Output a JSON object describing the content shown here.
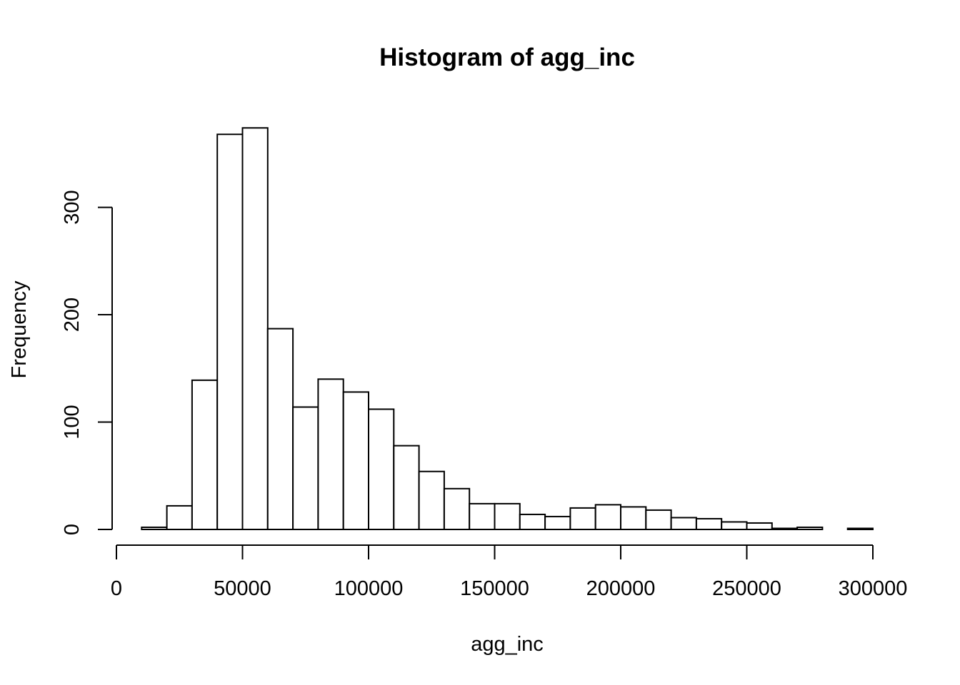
{
  "chart_data": {
    "type": "bar",
    "title": "Histogram of agg_inc",
    "xlabel": "agg_inc",
    "ylabel": "Frequency",
    "x_ticks": [
      0,
      50000,
      100000,
      150000,
      200000,
      250000,
      300000
    ],
    "y_ticks": [
      0,
      100,
      200,
      300
    ],
    "xlim": [
      0,
      300000
    ],
    "ylim": [
      0,
      380
    ],
    "bin_width": 10000,
    "bins": [
      {
        "start": 10000,
        "end": 20000,
        "count": 2
      },
      {
        "start": 20000,
        "end": 30000,
        "count": 22
      },
      {
        "start": 30000,
        "end": 40000,
        "count": 139
      },
      {
        "start": 40000,
        "end": 50000,
        "count": 368
      },
      {
        "start": 50000,
        "end": 60000,
        "count": 374
      },
      {
        "start": 60000,
        "end": 70000,
        "count": 187
      },
      {
        "start": 70000,
        "end": 80000,
        "count": 114
      },
      {
        "start": 80000,
        "end": 90000,
        "count": 140
      },
      {
        "start": 90000,
        "end": 100000,
        "count": 128
      },
      {
        "start": 100000,
        "end": 110000,
        "count": 112
      },
      {
        "start": 110000,
        "end": 120000,
        "count": 78
      },
      {
        "start": 120000,
        "end": 130000,
        "count": 54
      },
      {
        "start": 130000,
        "end": 140000,
        "count": 38
      },
      {
        "start": 140000,
        "end": 150000,
        "count": 24
      },
      {
        "start": 150000,
        "end": 160000,
        "count": 24
      },
      {
        "start": 160000,
        "end": 170000,
        "count": 14
      },
      {
        "start": 170000,
        "end": 180000,
        "count": 12
      },
      {
        "start": 180000,
        "end": 190000,
        "count": 20
      },
      {
        "start": 190000,
        "end": 200000,
        "count": 23
      },
      {
        "start": 200000,
        "end": 210000,
        "count": 21
      },
      {
        "start": 210000,
        "end": 220000,
        "count": 18
      },
      {
        "start": 220000,
        "end": 230000,
        "count": 11
      },
      {
        "start": 230000,
        "end": 240000,
        "count": 10
      },
      {
        "start": 240000,
        "end": 250000,
        "count": 7
      },
      {
        "start": 250000,
        "end": 260000,
        "count": 6
      },
      {
        "start": 260000,
        "end": 270000,
        "count": 1
      },
      {
        "start": 270000,
        "end": 280000,
        "count": 2
      },
      {
        "start": 280000,
        "end": 290000,
        "count": 0
      },
      {
        "start": 290000,
        "end": 300000,
        "count": 1
      }
    ],
    "grid": false,
    "legend": "none"
  }
}
